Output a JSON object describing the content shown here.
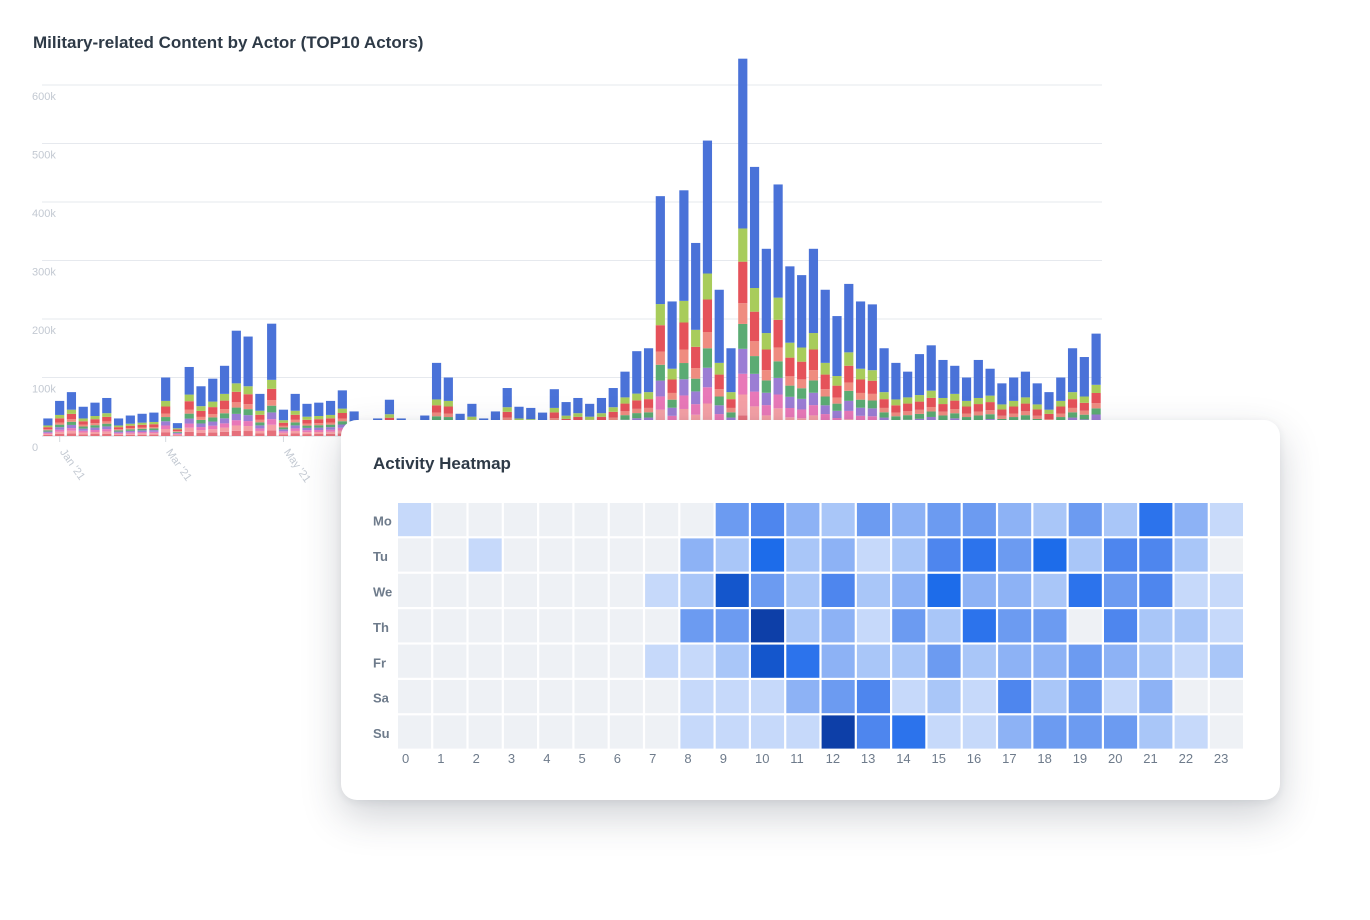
{
  "chart_data": [
    {
      "type": "bar",
      "stacked": true,
      "title": "Military-related Content by Actor (TOP10 Actors)",
      "xlabel": "",
      "ylabel": "",
      "ylim": [
        0,
        600000
      ],
      "y_ticks": [
        0,
        100000,
        200000,
        300000,
        400000,
        500000,
        600000
      ],
      "y_tick_labels": [
        "0",
        "100k",
        "200k",
        "300k",
        "400k",
        "500k",
        "600k"
      ],
      "x_tick_labels": [
        "Jan '21",
        "Mar '21",
        "May '21"
      ],
      "x_tick_positions": [
        1,
        10,
        20
      ],
      "grid": true,
      "series_colors": [
        "#e5707b",
        "#f4a0a6",
        "#e878b8",
        "#9b7dd4",
        "#5bab73",
        "#ef8c80",
        "#e5525a",
        "#a8cc5b",
        "#4a72d8"
      ],
      "totals": [
        30000,
        60000,
        75000,
        50000,
        57000,
        65000,
        30000,
        35000,
        38000,
        40000,
        100000,
        22000,
        118000,
        85000,
        98000,
        120000,
        180000,
        170000,
        72000,
        192000,
        45000,
        72000,
        55000,
        57000,
        60000,
        78000,
        42000,
        0,
        30000,
        62000,
        30000,
        0,
        35000,
        125000,
        100000,
        38000,
        55000,
        30000,
        42000,
        82000,
        50000,
        48000,
        40000,
        80000,
        58000,
        65000,
        55000,
        65000,
        82000,
        110000,
        145000,
        150000,
        410000,
        230000,
        420000,
        330000,
        505000,
        250000,
        150000,
        645000,
        460000,
        320000,
        430000,
        290000,
        275000,
        320000,
        250000,
        205000,
        260000,
        230000,
        225000,
        150000,
        125000,
        110000,
        140000,
        155000,
        130000,
        120000,
        100000,
        130000,
        115000,
        90000,
        100000,
        110000,
        90000,
        75000,
        100000,
        150000,
        135000,
        175000
      ],
      "top_segments": [
        {
          "index": 52,
          "blue": 180000,
          "green": 45000,
          "red": 85000
        },
        {
          "index": 59,
          "blue": 210000,
          "green": 35000,
          "red": 70000
        }
      ]
    },
    {
      "type": "heatmap",
      "title": "Activity Heatmap",
      "rows": [
        "Mo",
        "Tu",
        "We",
        "Th",
        "Fr",
        "Sa",
        "Su"
      ],
      "columns": [
        "0",
        "1",
        "2",
        "3",
        "4",
        "5",
        "6",
        "7",
        "8",
        "9",
        "10",
        "11",
        "12",
        "13",
        "14",
        "15",
        "16",
        "17",
        "18",
        "19",
        "20",
        "21",
        "22",
        "23"
      ],
      "levels": [
        [
          2,
          0,
          0,
          0,
          0,
          0,
          0,
          0,
          0,
          5,
          6,
          4,
          3,
          5,
          4,
          5,
          5,
          4,
          3,
          5,
          3,
          7,
          4,
          2
        ],
        [
          0,
          0,
          2,
          0,
          0,
          0,
          0,
          0,
          4,
          3,
          8,
          3,
          4,
          2,
          3,
          6,
          7,
          5,
          8,
          3,
          6,
          6,
          3,
          0
        ],
        [
          0,
          0,
          0,
          0,
          0,
          0,
          0,
          2,
          3,
          9,
          5,
          3,
          6,
          3,
          4,
          8,
          4,
          4,
          3,
          7,
          5,
          6,
          2,
          2
        ],
        [
          0,
          0,
          0,
          0,
          0,
          0,
          0,
          0,
          5,
          5,
          10,
          3,
          4,
          2,
          5,
          3,
          7,
          5,
          5,
          0,
          6,
          3,
          3,
          2
        ],
        [
          0,
          0,
          0,
          0,
          0,
          0,
          0,
          2,
          2,
          3,
          9,
          7,
          4,
          3,
          3,
          5,
          3,
          4,
          4,
          5,
          4,
          3,
          2,
          3
        ],
        [
          0,
          0,
          0,
          0,
          0,
          0,
          0,
          0,
          2,
          2,
          2,
          4,
          5,
          6,
          2,
          3,
          2,
          6,
          3,
          5,
          2,
          4,
          0,
          0
        ],
        [
          0,
          0,
          0,
          0,
          0,
          0,
          0,
          0,
          2,
          2,
          2,
          2,
          10,
          6,
          7,
          2,
          2,
          4,
          5,
          5,
          5,
          3,
          2,
          0
        ]
      ]
    }
  ]
}
